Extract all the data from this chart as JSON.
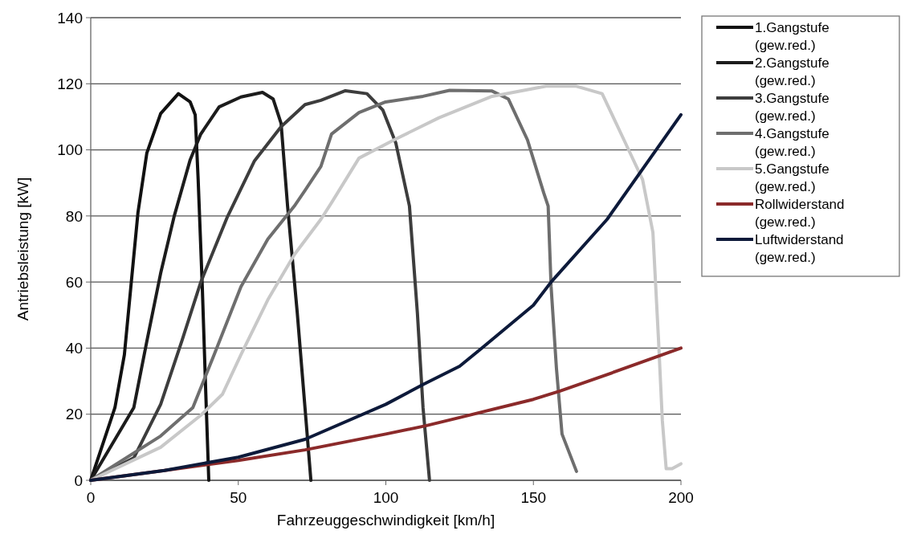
{
  "chart_data": {
    "type": "line",
    "xlabel": "Fahrzeuggeschwindigkeit [km/h]",
    "ylabel": "Antriebsleistung [kW]",
    "xlim": [
      0,
      200
    ],
    "xticks": [
      0,
      50,
      100,
      150,
      200
    ],
    "ylim": [
      0,
      140
    ],
    "yticks": [
      0,
      20,
      40,
      60,
      80,
      100,
      120,
      140
    ],
    "grid": "y",
    "legend": "right",
    "line_style": "solid",
    "marker": "none",
    "series": [
      {
        "name": "1.Gangstufe (gew.red.)",
        "color": "#111111",
        "x": [
          0,
          8.2,
          11.4,
          13.6,
          16,
          19,
          23.7,
          29.7,
          33.7,
          35.4,
          36.4,
          37.8,
          39,
          40
        ],
        "values": [
          0,
          22,
          38,
          58.6,
          81,
          99,
          111,
          117,
          114.5,
          110.6,
          91,
          58.6,
          26,
          0
        ]
      },
      {
        "name": "2.Gangstufe (gew.red.)",
        "color": "#1c1c1c",
        "x": [
          0,
          14.6,
          19,
          23.7,
          28.3,
          33.7,
          37.3,
          43.5,
          50.9,
          58.2,
          61.8,
          64.5,
          66.7,
          70,
          72.6,
          74.6
        ],
        "values": [
          0,
          22,
          42,
          62.7,
          80,
          97,
          104.8,
          113,
          116,
          117.4,
          115.4,
          108,
          83,
          50.5,
          22,
          0
        ]
      },
      {
        "name": "3.Gangstufe (gew.red.)",
        "color": "#3d3d3d",
        "x": [
          0,
          14.6,
          23.7,
          31,
          37.3,
          46.3,
          55.5,
          64.5,
          72.6,
          78,
          86.3,
          93.6,
          99,
          103.4,
          108,
          110.7,
          112.6,
          114.8
        ],
        "values": [
          0,
          6.8,
          23,
          42.5,
          60,
          79.7,
          96.7,
          107,
          113.7,
          115,
          117.9,
          117,
          112,
          102,
          83,
          50.5,
          22,
          0
        ]
      },
      {
        "name": "4.Gangstufe (gew.red.)",
        "color": "#6e6e6e",
        "x": [
          0,
          23.7,
          34.6,
          41.8,
          50.9,
          60,
          69,
          72.6,
          78,
          81.6,
          90.9,
          99.9,
          112.6,
          121.6,
          136,
          141.5,
          148,
          153.5,
          155,
          156,
          157.8,
          159.7,
          164.6
        ],
        "values": [
          0,
          13.4,
          22,
          38,
          58.6,
          73,
          83,
          87.7,
          95,
          104.8,
          111.3,
          114.5,
          116.2,
          118,
          117.8,
          115.4,
          103,
          87,
          83,
          58.6,
          34,
          14,
          2.7
        ]
      },
      {
        "name": "5.Gangstufe (gew.red.)",
        "color": "#c8c8c8",
        "x": [
          0,
          23.7,
          37.3,
          44.6,
          50.9,
          60,
          69,
          78,
          81.6,
          90.9,
          103.4,
          118,
          136,
          154.3,
          164.3,
          173.3,
          180.7,
          187,
          190.5,
          192.4,
          193.7,
          195,
          197,
          200
        ],
        "values": [
          0,
          10,
          19.7,
          26,
          38,
          54.6,
          68.3,
          79,
          84,
          97.5,
          103.3,
          109.7,
          116.2,
          119.3,
          119.3,
          117,
          103,
          91,
          75,
          42.5,
          18,
          3.5,
          3.5,
          5
        ]
      },
      {
        "name": "Rollwiderstand (gew.red.)",
        "color": "#8b2a2a",
        "x": [
          0,
          25,
          50,
          72.6,
          100,
          113.5,
          125,
          150,
          159,
          175,
          200
        ],
        "values": [
          0,
          3,
          6,
          9.2,
          14,
          16.5,
          19,
          24.5,
          27,
          32,
          40
        ]
      },
      {
        "name": "Luftwiderstand (gew.red.)",
        "color": "#0d1a3a",
        "x": [
          0,
          25,
          50,
          72.6,
          100,
          112.6,
          125,
          132.5,
          150,
          156,
          175,
          200
        ],
        "values": [
          0,
          3,
          7,
          12.4,
          23,
          29,
          34.5,
          40,
          53,
          60,
          79,
          110.6
        ]
      }
    ]
  }
}
